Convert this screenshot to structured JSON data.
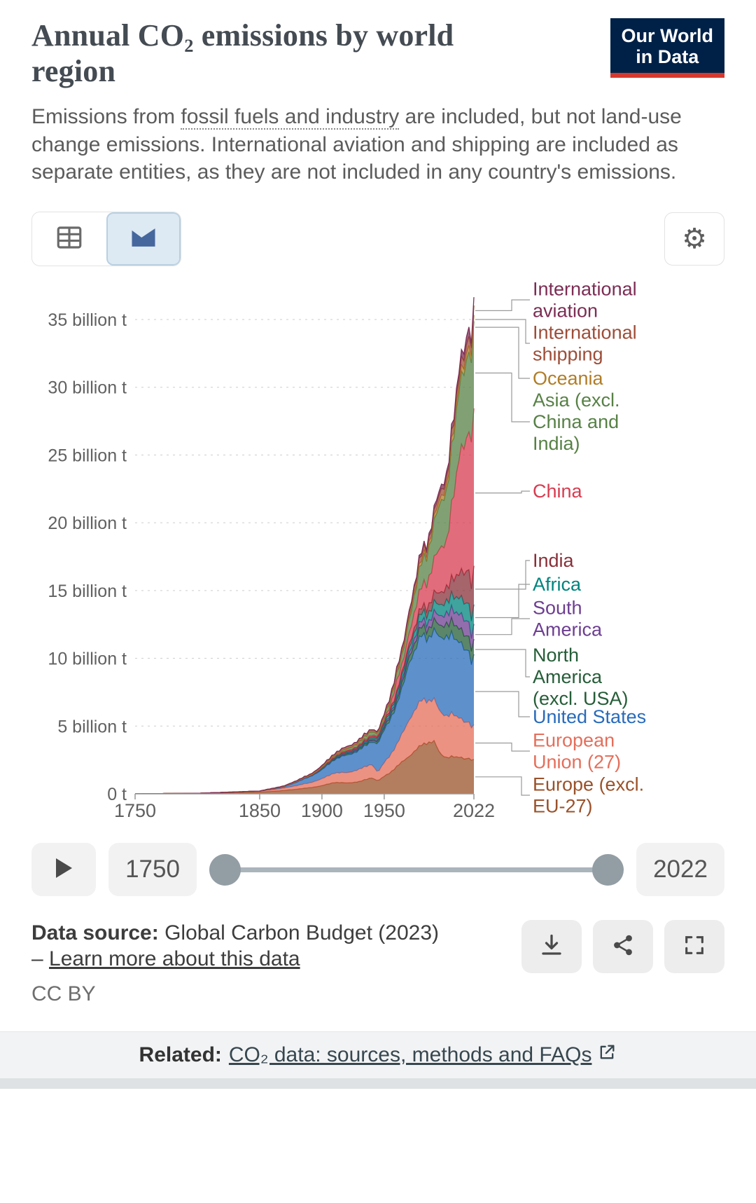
{
  "header": {
    "title": "Annual CO₂ emissions by world region",
    "logo_line1": "Our World",
    "logo_line2": "in Data",
    "subtitle_part1": "Emissions from ",
    "subtitle_link": "fossil fuels and industry",
    "subtitle_part2": " are included, but not land-use change emissions. International aviation and shipping are included as separate entities, as they are not included in any country's emissions."
  },
  "colors": {
    "logo_bg": "#002147",
    "logo_accent": "#d7382e",
    "toggle_selected_bg": "#dde9f3"
  },
  "toolbar": {
    "table_view_icon": "table-icon",
    "chart_view_icon": "stacked-area-chart-icon",
    "settings_icon": "gear-icon",
    "gear_glyph": "⚙"
  },
  "timeline": {
    "start_year": "1750",
    "end_year": "2022"
  },
  "footer": {
    "source_prefix": "Data source:",
    "source_text": " Global Carbon Budget (2023) – ",
    "learn_more_label": "Learn more about this data",
    "license_label": "CC BY"
  },
  "related": {
    "prefix": "Related:",
    "link_label": "CO₂ data: sources, methods and FAQs"
  },
  "chart_data": {
    "type": "area",
    "stacked": true,
    "title": "Annual CO₂ emissions by world region",
    "unit": "billion tonnes of CO₂",
    "xlim": [
      1750,
      2022
    ],
    "ylim": [
      0,
      37
    ],
    "grid": true,
    "legend_position": "right",
    "xticks": [
      1750,
      1850,
      1900,
      1950,
      2022
    ],
    "yticks": [
      {
        "value": 0,
        "label": "0 t"
      },
      {
        "value": 5,
        "label": "5 billion t"
      },
      {
        "value": 10,
        "label": "10 billion t"
      },
      {
        "value": 15,
        "label": "15 billion t"
      },
      {
        "value": 20,
        "label": "20 billion t"
      },
      {
        "value": 25,
        "label": "25 billion t"
      },
      {
        "value": 30,
        "label": "30 billion t"
      },
      {
        "value": 35,
        "label": "35 billion t"
      }
    ],
    "years": [
      1750,
      1800,
      1850,
      1870,
      1890,
      1900,
      1910,
      1920,
      1930,
      1940,
      1945,
      1950,
      1955,
      1960,
      1965,
      1970,
      1975,
      1980,
      1985,
      1990,
      1995,
      2000,
      2005,
      2009,
      2010,
      2015,
      2019,
      2020,
      2021,
      2022
    ],
    "series": [
      {
        "id": "europe-excl-eu27",
        "name": "Europe (excl. EU-27)",
        "label_lines": [
          "Europe (excl.",
          "EU-27)"
        ],
        "color": "#9A5129",
        "values": [
          0.01,
          0.03,
          0.12,
          0.25,
          0.45,
          0.6,
          0.85,
          0.8,
          0.9,
          1.2,
          0.95,
          1.3,
          1.6,
          2.0,
          2.4,
          2.8,
          3.2,
          3.6,
          3.8,
          3.9,
          2.9,
          2.7,
          2.8,
          2.6,
          2.7,
          2.6,
          2.7,
          2.5,
          2.6,
          2.5
        ]
      },
      {
        "id": "european-union-27",
        "name": "European Union (27)",
        "label_lines": [
          "European",
          "Union (27)"
        ],
        "color": "#E56E5A",
        "values": [
          0,
          0.01,
          0.06,
          0.18,
          0.35,
          0.5,
          0.7,
          0.75,
          0.9,
          1.0,
          0.6,
          1.0,
          1.3,
          1.6,
          2.1,
          2.7,
          3.0,
          3.3,
          3.1,
          3.1,
          3.0,
          3.1,
          3.2,
          2.8,
          2.9,
          2.7,
          2.7,
          2.4,
          2.6,
          2.5
        ]
      },
      {
        "id": "united-states",
        "name": "United States",
        "label_lines": [
          "United States"
        ],
        "color": "#286BBB",
        "values": [
          0,
          0,
          0.02,
          0.1,
          0.45,
          0.66,
          1.0,
          1.3,
          1.4,
          1.7,
          2.1,
          2.4,
          2.7,
          2.9,
          3.4,
          4.3,
          4.4,
          4.8,
          4.6,
          5.1,
          5.4,
          5.9,
          5.9,
          5.3,
          5.6,
          5.4,
          5.3,
          4.7,
          5.0,
          5.1
        ]
      },
      {
        "id": "north-america-excl-usa",
        "name": "North America (excl. USA)",
        "label_lines": [
          "North",
          "America",
          "(excl. USA)"
        ],
        "color": "#255D38",
        "values": [
          0,
          0,
          0,
          0.01,
          0.02,
          0.04,
          0.06,
          0.09,
          0.1,
          0.13,
          0.15,
          0.2,
          0.25,
          0.3,
          0.4,
          0.5,
          0.55,
          0.65,
          0.65,
          0.75,
          0.85,
          0.95,
          1.0,
          1.0,
          1.0,
          1.05,
          1.1,
          1.0,
          1.05,
          1.1
        ]
      },
      {
        "id": "south-america",
        "name": "South America",
        "label_lines": [
          "South",
          "America"
        ],
        "color": "#6D3E91",
        "values": [
          0,
          0,
          0,
          0.005,
          0.01,
          0.02,
          0.04,
          0.05,
          0.06,
          0.08,
          0.09,
          0.12,
          0.15,
          0.2,
          0.25,
          0.3,
          0.4,
          0.45,
          0.5,
          0.6,
          0.7,
          0.8,
          0.9,
          1.0,
          1.05,
          1.15,
          1.05,
          0.95,
          1.05,
          1.1
        ]
      },
      {
        "id": "africa",
        "name": "Africa",
        "label_lines": [
          "Africa"
        ],
        "color": "#00847E",
        "values": [
          0,
          0,
          0,
          0.005,
          0.01,
          0.02,
          0.03,
          0.05,
          0.07,
          0.1,
          0.12,
          0.15,
          0.2,
          0.25,
          0.3,
          0.35,
          0.45,
          0.55,
          0.65,
          0.72,
          0.8,
          0.9,
          1.05,
          1.1,
          1.2,
          1.3,
          1.4,
          1.3,
          1.35,
          1.4
        ]
      },
      {
        "id": "india",
        "name": "India",
        "label_lines": [
          "India"
        ],
        "color": "#883039",
        "values": [
          0,
          0,
          0,
          0.005,
          0.02,
          0.05,
          0.07,
          0.09,
          0.1,
          0.12,
          0.13,
          0.15,
          0.17,
          0.2,
          0.26,
          0.3,
          0.37,
          0.42,
          0.55,
          0.7,
          0.9,
          1.05,
          1.25,
          1.7,
          1.75,
          2.3,
          2.6,
          2.4,
          2.7,
          2.8
        ]
      },
      {
        "id": "china",
        "name": "China",
        "label_lines": [
          "China"
        ],
        "color": "#D73C50",
        "values": [
          0,
          0,
          0,
          0,
          0.01,
          0.02,
          0.03,
          0.05,
          0.07,
          0.1,
          0.07,
          0.08,
          0.3,
          0.8,
          0.5,
          0.8,
          1.2,
          1.5,
          1.9,
          2.5,
          3.3,
          3.4,
          5.9,
          7.7,
          8.5,
          9.7,
          10.5,
          10.9,
          11.3,
          11.4
        ]
      },
      {
        "id": "asia-excl-china-india",
        "name": "Asia (excl. China and India)",
        "label_lines": [
          "Asia (excl.",
          "China and",
          "India)"
        ],
        "color": "#578145",
        "values": [
          0,
          0,
          0.005,
          0.01,
          0.03,
          0.05,
          0.08,
          0.12,
          0.18,
          0.25,
          0.15,
          0.25,
          0.35,
          0.5,
          0.7,
          1.0,
          1.3,
          1.8,
          2.1,
          2.7,
          3.3,
          3.7,
          4.3,
          4.7,
          5.0,
          5.7,
          6.1,
          5.9,
          6.1,
          6.3
        ]
      },
      {
        "id": "oceania",
        "name": "Oceania",
        "label_lines": [
          "Oceania"
        ],
        "color": "#B07D28",
        "values": [
          0,
          0,
          0,
          0.005,
          0.01,
          0.015,
          0.02,
          0.03,
          0.04,
          0.05,
          0.05,
          0.06,
          0.08,
          0.1,
          0.13,
          0.16,
          0.2,
          0.24,
          0.26,
          0.3,
          0.33,
          0.38,
          0.41,
          0.43,
          0.44,
          0.45,
          0.46,
          0.44,
          0.44,
          0.45
        ]
      },
      {
        "id": "international-shipping",
        "name": "International shipping",
        "label_lines": [
          "International",
          "shipping"
        ],
        "color": "#9E4D38",
        "values": [
          0,
          0,
          0.005,
          0.02,
          0.05,
          0.08,
          0.12,
          0.14,
          0.15,
          0.13,
          0.1,
          0.15,
          0.18,
          0.22,
          0.28,
          0.35,
          0.4,
          0.42,
          0.38,
          0.4,
          0.45,
          0.5,
          0.57,
          0.58,
          0.6,
          0.63,
          0.7,
          0.65,
          0.68,
          0.7
        ]
      },
      {
        "id": "international-aviation",
        "name": "International aviation",
        "label_lines": [
          "International",
          "aviation"
        ],
        "color": "#7C2D54",
        "values": [
          0,
          0,
          0,
          0,
          0,
          0,
          0,
          0.005,
          0.01,
          0.01,
          0.02,
          0.03,
          0.05,
          0.07,
          0.1,
          0.15,
          0.17,
          0.2,
          0.22,
          0.26,
          0.3,
          0.35,
          0.4,
          0.42,
          0.45,
          0.55,
          0.75,
          0.35,
          0.45,
          0.6
        ]
      }
    ]
  }
}
